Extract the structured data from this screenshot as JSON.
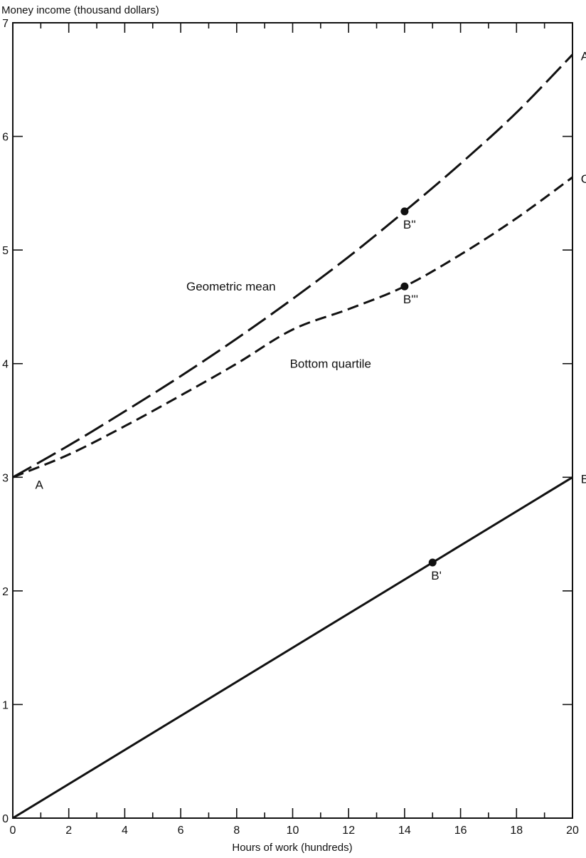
{
  "chart_data": {
    "type": "line",
    "title": "",
    "xlabel": "Hours of work (hundreds)",
    "ylabel": "Money income (thousand dollars)",
    "xlim": [
      0,
      20
    ],
    "ylim": [
      0,
      7
    ],
    "x_ticks": [
      0,
      2,
      4,
      6,
      8,
      10,
      12,
      14,
      16,
      18,
      20
    ],
    "y_ticks": [
      0,
      1,
      2,
      3,
      4,
      5,
      6,
      7
    ],
    "grid": false,
    "series": [
      {
        "name": "Geometric mean",
        "style": "long-dash",
        "x": [
          0,
          2,
          4,
          6,
          8,
          10,
          12,
          14,
          16,
          18,
          20
        ],
        "y": [
          3.0,
          3.28,
          3.58,
          3.89,
          4.22,
          4.57,
          4.94,
          5.34,
          5.76,
          6.21,
          6.72
        ]
      },
      {
        "name": "Bottom quartile",
        "style": "short-dash",
        "x": [
          0,
          2,
          4,
          6,
          8,
          10,
          12,
          14,
          16,
          18,
          20
        ],
        "y": [
          3.0,
          3.2,
          3.45,
          3.72,
          4.0,
          4.3,
          4.48,
          4.68,
          4.96,
          5.28,
          5.64
        ]
      },
      {
        "name": "",
        "style": "solid",
        "x": [
          0,
          20
        ],
        "y": [
          0,
          3.0
        ]
      }
    ],
    "points": [
      {
        "label": "B''",
        "x": 14,
        "y": 5.34,
        "marker": true
      },
      {
        "label": "B'''",
        "x": 14,
        "y": 4.68,
        "marker": true
      },
      {
        "label": "B'",
        "x": 15,
        "y": 2.25,
        "marker": true
      }
    ],
    "annotations": [
      {
        "text": "A",
        "x": 0.8,
        "y": 2.95
      },
      {
        "text": "A'",
        "x": 20.3,
        "y": 6.72
      },
      {
        "text": "C",
        "x": 20.3,
        "y": 5.64
      },
      {
        "text": "B",
        "x": 20.3,
        "y": 3.0
      },
      {
        "text": "Geometric mean",
        "x": 6.2,
        "y": 4.68
      },
      {
        "text": "Bottom quartile",
        "x": 9.9,
        "y": 4.0
      }
    ]
  }
}
